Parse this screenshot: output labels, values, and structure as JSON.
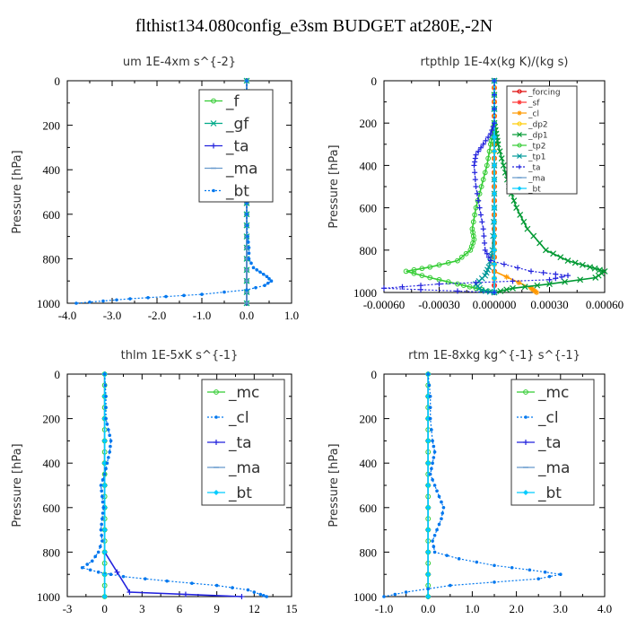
{
  "title": "flthist134.080config_e3sm  BUDGET at280E,-2N",
  "chart_data": [
    {
      "type": "line",
      "title": "um  1E-4xm s^{-2}",
      "ylabel": "Pressure [hPa]",
      "xlim": [
        -4.0,
        1.0
      ],
      "ylim": [
        1000,
        0
      ],
      "xticks": [
        -4.0,
        -3.0,
        -2.0,
        -1.0,
        0.0,
        1.0
      ],
      "xtick_labels": [
        "-4.0",
        "-3.0",
        "-2.0",
        "-1.0",
        "0.0",
        "1.0"
      ],
      "yticks": [
        0,
        200,
        400,
        600,
        800,
        1000
      ],
      "legend": {
        "position": "upper-right",
        "size": "large"
      },
      "series": [
        {
          "name": "_f",
          "color": "#33cc33",
          "marker": "circle",
          "p": [
            0,
            100,
            200,
            300,
            400,
            500,
            600,
            700,
            800,
            900,
            1000
          ],
          "x": [
            0,
            0,
            0,
            0,
            0,
            0,
            0,
            0,
            0,
            0,
            0
          ]
        },
        {
          "name": "_gf",
          "color": "#00aa88",
          "marker": "x",
          "p": [
            0,
            100,
            200,
            300,
            400,
            500,
            600,
            700,
            800,
            900,
            1000
          ],
          "x": [
            0,
            0,
            0,
            0,
            0,
            0,
            0,
            0,
            0,
            0,
            0
          ]
        },
        {
          "name": "_ta",
          "color": "#2222dd",
          "marker": "plus",
          "p": [
            0,
            100,
            200,
            300,
            400,
            500,
            600,
            700,
            800,
            900,
            1000
          ],
          "x": [
            0,
            0,
            0,
            0,
            0,
            0,
            0,
            0,
            0,
            0,
            0
          ]
        },
        {
          "name": "_ma",
          "color": "#6699cc",
          "marker": "dash",
          "p": [
            0,
            100,
            200,
            300,
            400,
            500,
            600,
            700,
            800,
            900,
            1000
          ],
          "x": [
            0,
            0,
            0,
            0,
            0,
            0,
            0,
            0,
            0,
            0,
            0
          ]
        },
        {
          "name": "_bt",
          "color": "#0077ee",
          "marker": "dot",
          "dotted": true,
          "p": [
            0,
            100,
            200,
            300,
            400,
            500,
            600,
            700,
            750,
            800,
            840,
            860,
            880,
            900,
            920,
            940,
            960,
            970,
            980,
            990,
            1000
          ],
          "x": [
            0,
            0,
            0,
            0,
            0,
            0,
            0,
            0.02,
            0.05,
            0.05,
            0.15,
            0.3,
            0.45,
            0.55,
            0.4,
            0.0,
            -1.0,
            -1.8,
            -2.6,
            -3.2,
            -3.8
          ]
        }
      ]
    },
    {
      "type": "line",
      "title": "rtpthlp  1E-4x(kg K)/(kg s)",
      "ylabel": "Pressure [hPa]",
      "xlim": [
        -0.0006,
        0.0006
      ],
      "ylim": [
        1000,
        0
      ],
      "xticks": [
        -0.0006,
        -0.0003,
        0.0,
        0.0003,
        0.0006
      ],
      "xtick_labels": [
        "-0.00060",
        "-0.00030",
        "0.000000",
        "0.00030",
        "0.00060"
      ],
      "yticks": [
        0,
        200,
        400,
        600,
        800,
        1000
      ],
      "legend": {
        "position": "upper-right",
        "size": "small"
      },
      "series": [
        {
          "name": "_forcing",
          "color": "#dd0000",
          "marker": "circle",
          "p": [
            0,
            100,
            200,
            300,
            400,
            500,
            600,
            700,
            800,
            900,
            1000
          ],
          "x": [
            0,
            0,
            0,
            0,
            0,
            0,
            0,
            0,
            0,
            0,
            0
          ]
        },
        {
          "name": "_sf",
          "color": "#ff3333",
          "marker": "star",
          "p": [
            0,
            100,
            200,
            300,
            400,
            500,
            600,
            700,
            800,
            900,
            1000
          ],
          "x": [
            0,
            0,
            0,
            0,
            0,
            0,
            0,
            0,
            0,
            0,
            0
          ]
        },
        {
          "name": "_cl",
          "color": "#ff9900",
          "marker": "star",
          "p": [
            0,
            100,
            200,
            300,
            400,
            500,
            600,
            700,
            800,
            900,
            980,
            1000
          ],
          "x": [
            0,
            0,
            0,
            0,
            0,
            0,
            0,
            0,
            0,
            0,
            0.0002,
            0.00023
          ]
        },
        {
          "name": "_dp2",
          "color": "#ffcc00",
          "marker": "circle",
          "p": [
            0,
            200,
            400,
            600,
            800,
            1000
          ],
          "x": [
            0,
            0,
            0,
            0,
            0,
            0
          ]
        },
        {
          "name": "_dp1",
          "color": "#009933",
          "marker": "x",
          "p": [
            0,
            200,
            250,
            300,
            400,
            500,
            600,
            700,
            800,
            850,
            880,
            900,
            930,
            960,
            980,
            1000
          ],
          "x": [
            0,
            0,
            1e-05,
            2e-05,
            5e-05,
            8e-05,
            0.00012,
            0.00018,
            0.00028,
            0.0004,
            0.00052,
            0.0006,
            0.00055,
            0.0003,
            0.0001,
            0.0
          ]
        },
        {
          "name": "_tp2",
          "color": "#33cc33",
          "marker": "circle",
          "p": [
            0,
            200,
            250,
            300,
            400,
            500,
            600,
            700,
            750,
            800,
            850,
            880,
            900,
            930,
            960,
            980,
            1000
          ],
          "x": [
            0,
            0,
            -1e-05,
            -2e-05,
            -4e-05,
            -7e-05,
            -0.0001,
            -0.00012,
            -0.00011,
            -0.00013,
            -0.0002,
            -0.00035,
            -0.00048,
            -0.00035,
            -0.0002,
            -0.0001,
            0.0
          ]
        },
        {
          "name": "_tp1",
          "color": "#009999",
          "marker": "x",
          "p": [
            0,
            400,
            600,
            800,
            880,
            920,
            960,
            990,
            1000
          ],
          "x": [
            0,
            0,
            0,
            -1e-05,
            -3e-05,
            -5e-05,
            -0.0001,
            -7e-05,
            0.0
          ]
        },
        {
          "name": "_ta",
          "color": "#2222dd",
          "marker": "plus",
          "dotted": true,
          "p": [
            0,
            200,
            250,
            300,
            350,
            400,
            500,
            600,
            700,
            800,
            850,
            900,
            920,
            940,
            960,
            980,
            1000
          ],
          "x": [
            0,
            0,
            -2e-05,
            -6e-05,
            -0.0001,
            -0.00011,
            -0.0001,
            -8e-05,
            -6e-05,
            -5e-05,
            -2e-05,
            0.0002,
            0.0004,
            0.0003,
            -0.0003,
            -0.0006,
            0.0
          ]
        },
        {
          "name": "_ma",
          "color": "#6699cc",
          "marker": "dash",
          "p": [
            0,
            200,
            400,
            600,
            800,
            1000
          ],
          "x": [
            0,
            0,
            0,
            0,
            0,
            0
          ]
        },
        {
          "name": "_bt",
          "color": "#00ccff",
          "marker": "diamond",
          "p": [
            0,
            200,
            400,
            600,
            800,
            1000
          ],
          "x": [
            0,
            0,
            0,
            0,
            0,
            0
          ]
        }
      ]
    },
    {
      "type": "line",
      "title": "thlm  1E-5xK s^{-1}",
      "ylabel": "Pressure [hPa]",
      "xlim": [
        -3,
        15
      ],
      "ylim": [
        1000,
        0
      ],
      "xticks": [
        -3,
        0,
        3,
        6,
        9,
        12,
        15
      ],
      "xtick_labels": [
        "-3",
        "0",
        "3",
        "6",
        "9",
        "12",
        "15"
      ],
      "yticks": [
        0,
        200,
        400,
        600,
        800,
        1000
      ],
      "legend": {
        "position": "upper-right",
        "size": "large"
      },
      "series": [
        {
          "name": "_mc",
          "color": "#33cc33",
          "marker": "circle",
          "p": [
            0,
            100,
            200,
            300,
            400,
            500,
            600,
            700,
            800,
            900,
            1000
          ],
          "x": [
            0,
            0,
            0,
            0,
            0,
            0,
            0,
            0,
            0,
            0,
            0
          ]
        },
        {
          "name": "_cl",
          "color": "#0077ee",
          "marker": "dot",
          "dotted": true,
          "p": [
            0,
            100,
            200,
            250,
            300,
            350,
            400,
            450,
            500,
            550,
            600,
            650,
            700,
            750,
            800,
            840,
            870,
            890,
            910,
            930,
            950,
            970,
            990,
            1000
          ],
          "x": [
            0,
            0.1,
            0.1,
            0.3,
            0.5,
            0.4,
            0.2,
            0.0,
            -0.3,
            -0.2,
            -0.1,
            -0.2,
            -0.3,
            -0.2,
            -0.5,
            -1.0,
            -1.8,
            -0.5,
            1.5,
            5.0,
            9.0,
            11.5,
            12.5,
            13.0
          ]
        },
        {
          "name": "_ta",
          "color": "#2222dd",
          "marker": "plus",
          "p": [
            0,
            200,
            400,
            600,
            800,
            980,
            1000
          ],
          "x": [
            0,
            0,
            0,
            0,
            0,
            2.0,
            11.0
          ]
        },
        {
          "name": "_ma",
          "color": "#6699cc",
          "marker": "dash",
          "p": [
            0,
            200,
            400,
            600,
            800,
            1000
          ],
          "x": [
            0,
            0,
            0,
            0,
            0,
            0
          ]
        },
        {
          "name": "_bt",
          "color": "#00ccff",
          "marker": "diamond",
          "p": [
            0,
            200,
            400,
            600,
            800,
            1000
          ],
          "x": [
            0,
            0,
            0,
            0,
            0,
            0
          ]
        }
      ]
    },
    {
      "type": "line",
      "title": "rtm  1E-8xkg kg^{-1} s^{-1}",
      "ylabel": "Pressure [hPa]",
      "xlim": [
        -1.0,
        4.0
      ],
      "ylim": [
        1000,
        0
      ],
      "xticks": [
        -1.0,
        0.0,
        1.0,
        2.0,
        3.0,
        4.0
      ],
      "xtick_labels": [
        "-1.0",
        "0.0",
        "1.0",
        "2.0",
        "3.0",
        "4.0"
      ],
      "yticks": [
        0,
        200,
        400,
        600,
        800,
        1000
      ],
      "legend": {
        "position": "upper-right",
        "size": "large"
      },
      "series": [
        {
          "name": "_mc",
          "color": "#33cc33",
          "marker": "circle",
          "p": [
            0,
            100,
            200,
            300,
            400,
            500,
            600,
            700,
            800,
            900,
            1000
          ],
          "x": [
            0,
            0,
            0,
            0,
            0,
            0,
            0,
            0,
            0,
            0,
            0
          ]
        },
        {
          "name": "_cl",
          "color": "#0077ee",
          "marker": "dot",
          "dotted": true,
          "p": [
            0,
            100,
            200,
            300,
            350,
            400,
            450,
            500,
            550,
            600,
            650,
            700,
            750,
            800,
            830,
            860,
            880,
            900,
            920,
            950,
            980,
            1000
          ],
          "x": [
            0,
            0.05,
            0.05,
            0.1,
            0.15,
            0.1,
            0.05,
            0.15,
            0.25,
            0.35,
            0.3,
            0.2,
            0.1,
            0.15,
            0.7,
            1.5,
            2.3,
            3.0,
            2.5,
            0.5,
            -0.5,
            -1.0
          ]
        },
        {
          "name": "_ta",
          "color": "#2222dd",
          "marker": "plus",
          "p": [
            0,
            200,
            400,
            600,
            800,
            1000
          ],
          "x": [
            0,
            0,
            0,
            0,
            0,
            0
          ]
        },
        {
          "name": "_ma",
          "color": "#6699cc",
          "marker": "dash",
          "p": [
            0,
            200,
            400,
            600,
            800,
            1000
          ],
          "x": [
            0,
            0,
            0,
            0,
            0,
            0
          ]
        },
        {
          "name": "_bt",
          "color": "#00ccff",
          "marker": "diamond",
          "p": [
            0,
            200,
            400,
            600,
            800,
            1000
          ],
          "x": [
            0,
            0,
            0,
            0,
            0,
            0
          ]
        }
      ]
    }
  ]
}
